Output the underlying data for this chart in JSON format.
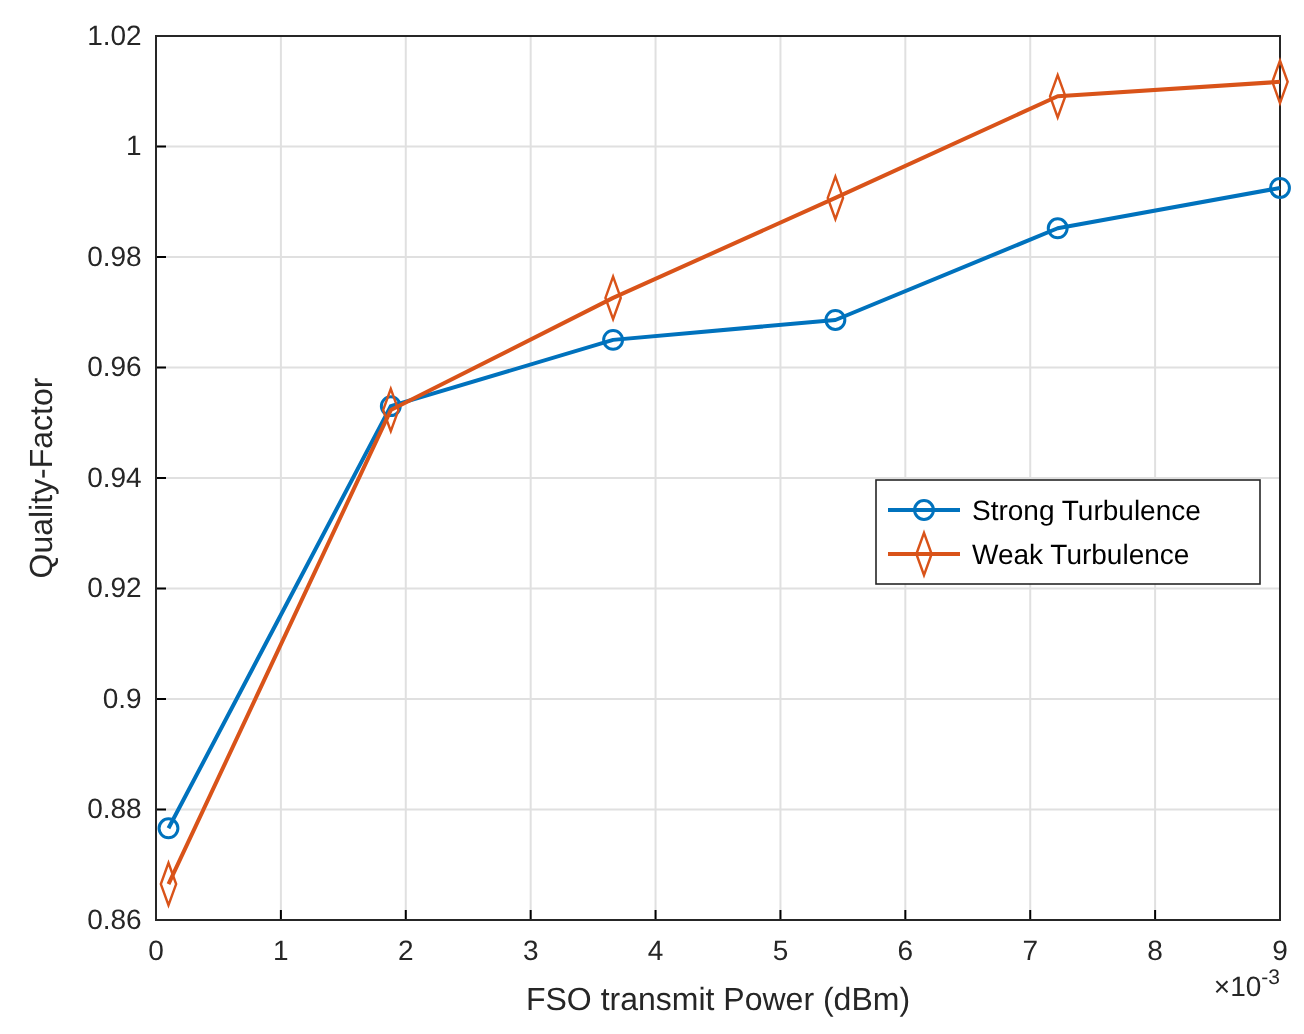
{
  "chart_data": {
    "type": "line",
    "xlabel": "FSO transmit Power (dBm)",
    "ylabel": "Quality-Factor",
    "xlim": [
      0,
      9
    ],
    "xticks": [
      0,
      1,
      2,
      3,
      4,
      5,
      6,
      7,
      8,
      9
    ],
    "ylim": [
      0.86,
      1.02
    ],
    "yticks": [
      0.86,
      0.88,
      0.9,
      0.92,
      0.94,
      0.96,
      0.98,
      1,
      1.02
    ],
    "x": [
      0.1,
      1.88,
      3.66,
      5.44,
      7.22,
      9
    ],
    "series": [
      {
        "name": "Strong Turbulence",
        "color": "#0072bd",
        "marker": "circle",
        "values": [
          0.8766,
          0.953,
          0.965,
          0.9686,
          0.9852,
          0.9925
        ]
      },
      {
        "name": "Weak Turbulence",
        "color": "#d95319",
        "marker": "diamond",
        "values": [
          0.8665,
          0.9523,
          0.9726,
          0.9907,
          1.0091,
          1.0117
        ]
      }
    ],
    "grid": true,
    "legend": "right",
    "line_style": "solid",
    "annotations": [
      "×10$^{-3}$"
    ]
  }
}
